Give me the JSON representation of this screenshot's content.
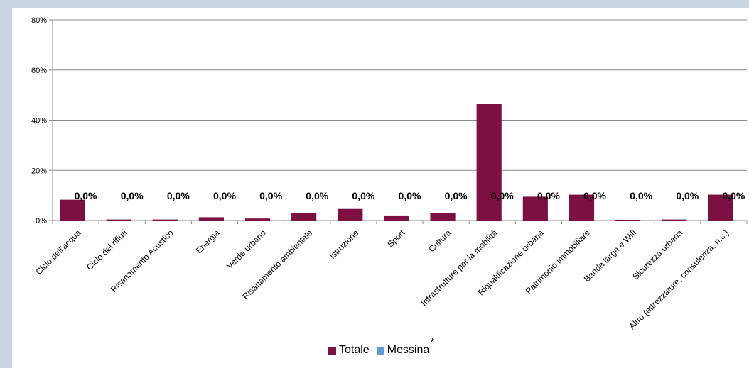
{
  "chart_data": {
    "type": "bar",
    "categories": [
      "Ciclo dell'acqua",
      "Ciclo dei rifiuti",
      "Risanamento Acustico",
      "Energia",
      "Verde urbano",
      "Risanamento ambientale",
      "Istruzione",
      "Sport",
      "Cultura",
      "Infrastrutture per la mobilità",
      "Riqualificazione urbana",
      "Patrimonio immobiliare",
      "Banda larga e Wifi",
      "Sicurezza urbana",
      "Altro (attrezzature, consulenza, n.c.)"
    ],
    "series": [
      {
        "name": "Totale",
        "color": "#7b1041",
        "values": [
          8.3,
          0.4,
          0.4,
          1.3,
          0.8,
          3.0,
          4.6,
          2.0,
          3.0,
          46.5,
          9.5,
          10.3,
          0.3,
          0.4,
          10.3
        ]
      },
      {
        "name": "Messina",
        "color": "#5b9bd5",
        "values": [
          0,
          0,
          0,
          0,
          0,
          0,
          0,
          0,
          0,
          0,
          0,
          0,
          0,
          0,
          0
        ],
        "data_labels": [
          "0,0%",
          "0,0%",
          "0,0%",
          "0,0%",
          "0,0%",
          "0,0%",
          "0,0%",
          "0,0%",
          "0,0%",
          "0,0%",
          "0,0%",
          "0,0%",
          "0,0%",
          "0,0%",
          "0,0%"
        ]
      }
    ],
    "yticks": [
      "0%",
      "20%",
      "40%",
      "60%",
      "80%"
    ],
    "ylim": [
      0,
      80
    ],
    "grid": true,
    "legend": "bottom",
    "legend_suffix": "*"
  }
}
